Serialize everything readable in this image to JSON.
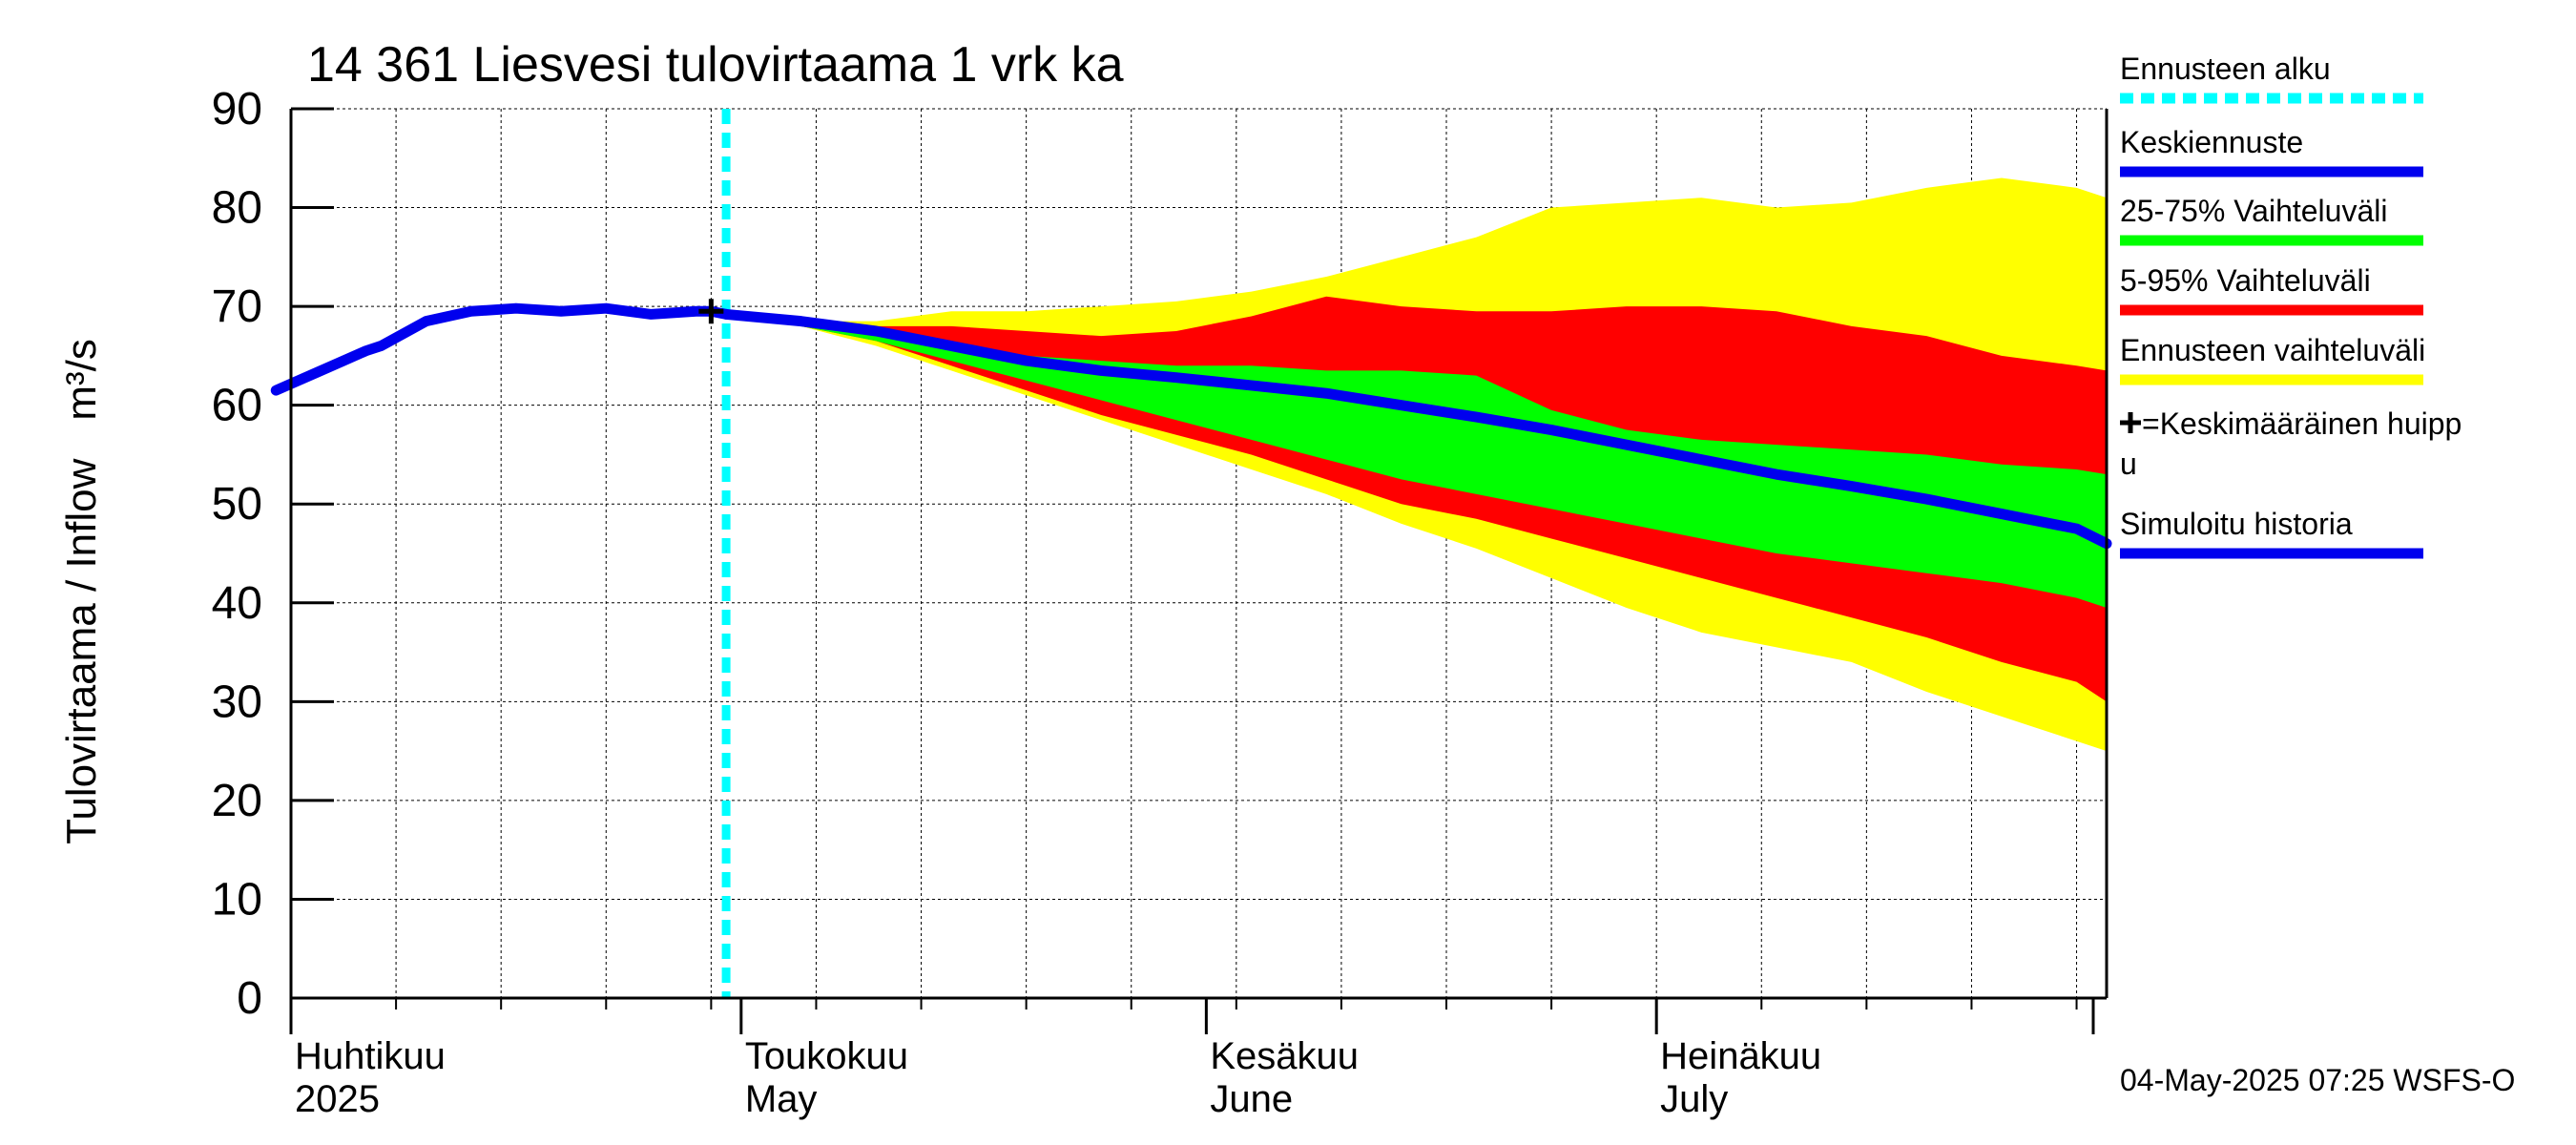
{
  "chart_data": {
    "type": "area",
    "title": "14 361 Liesvesi tulovirtaama 1 vrk ka",
    "ylabel": "Tulovirtaama / Inflow",
    "yunit": "m³/s",
    "ylim": [
      0,
      90
    ],
    "yticks": [
      0,
      10,
      20,
      30,
      40,
      50,
      60,
      70,
      80,
      90
    ],
    "xlim": [
      "2025-04-01",
      "2025-07-31"
    ],
    "grid": true,
    "month_labels": [
      {
        "date": "2025-04-01",
        "line1": "Huhtikuu",
        "line2": "2025"
      },
      {
        "date": "2025-05-01",
        "line1": "Toukokuu",
        "line2": "May"
      },
      {
        "date": "2025-06-01",
        "line1": "Kesäkuu",
        "line2": "June"
      },
      {
        "date": "2025-07-01",
        "line1": "Heinäkuu",
        "line2": "July"
      }
    ],
    "forecast_start": "2025-04-30",
    "mean_peak": {
      "date": "2025-04-29",
      "value": 69.5
    },
    "history": {
      "dates": [
        "2025-03-31",
        "2025-04-03",
        "2025-04-06",
        "2025-04-07",
        "2025-04-10",
        "2025-04-13",
        "2025-04-16",
        "2025-04-19",
        "2025-04-22",
        "2025-04-25",
        "2025-04-28",
        "2025-04-29",
        "2025-04-30"
      ],
      "values": [
        61.5,
        63.5,
        65.5,
        66.0,
        68.5,
        69.5,
        69.8,
        69.5,
        69.8,
        69.2,
        69.5,
        69.5,
        69.2
      ]
    },
    "forecast_dates": [
      "2025-04-30",
      "2025-05-05",
      "2025-05-10",
      "2025-05-15",
      "2025-05-20",
      "2025-05-25",
      "2025-05-30",
      "2025-06-04",
      "2025-06-09",
      "2025-06-14",
      "2025-06-19",
      "2025-06-24",
      "2025-06-29",
      "2025-07-04",
      "2025-07-09",
      "2025-07-14",
      "2025-07-19",
      "2025-07-24",
      "2025-07-29",
      "2025-07-31"
    ],
    "series": [
      {
        "name": "Ennusteen vaihteluväli",
        "role": "band",
        "color": "#ffff00",
        "upper": [
          69.2,
          68.5,
          68.5,
          69.5,
          69.5,
          70.0,
          70.5,
          71.5,
          73.0,
          75.0,
          77.0,
          80.0,
          80.5,
          81.0,
          80.0,
          80.5,
          82.0,
          83.0,
          82.0,
          81.0
        ],
        "lower": [
          69.2,
          68.0,
          66.0,
          63.5,
          61.0,
          58.5,
          56.0,
          53.5,
          51.0,
          48.0,
          45.5,
          42.5,
          39.5,
          37.0,
          35.5,
          34.0,
          31.0,
          28.5,
          26.0,
          25.0
        ]
      },
      {
        "name": "5-95% Vaihteluväli",
        "role": "band",
        "color": "#ff0000",
        "upper": [
          69.2,
          68.3,
          68.0,
          68.0,
          67.5,
          67.0,
          67.5,
          69.0,
          71.0,
          70.0,
          69.5,
          69.5,
          70.0,
          70.0,
          69.5,
          68.0,
          67.0,
          65.0,
          64.0,
          63.5
        ],
        "lower": [
          69.2,
          68.0,
          66.5,
          64.0,
          61.5,
          59.0,
          57.0,
          55.0,
          52.5,
          50.0,
          48.5,
          46.5,
          44.5,
          42.5,
          40.5,
          38.5,
          36.5,
          34.0,
          32.0,
          30.0
        ]
      },
      {
        "name": "25-75% Vaihteluväli",
        "role": "band",
        "color": "#00ff00",
        "upper": [
          69.2,
          68.2,
          67.0,
          65.5,
          65.0,
          64.5,
          64.0,
          64.0,
          63.5,
          63.5,
          63.0,
          59.5,
          57.5,
          56.5,
          56.0,
          55.5,
          55.0,
          54.0,
          53.5,
          53.0
        ],
        "lower": [
          69.2,
          68.0,
          66.5,
          64.5,
          62.5,
          60.5,
          58.5,
          56.5,
          54.5,
          52.5,
          51.0,
          49.5,
          48.0,
          46.5,
          45.0,
          44.0,
          43.0,
          42.0,
          40.5,
          39.5
        ]
      },
      {
        "name": "Keskiennuste",
        "role": "line",
        "color": "#0000ee",
        "values": [
          69.2,
          68.5,
          67.5,
          66.0,
          64.5,
          63.5,
          62.8,
          62.0,
          61.2,
          60.0,
          58.8,
          57.5,
          56.0,
          54.5,
          53.0,
          51.8,
          50.5,
          49.0,
          47.5,
          46.0
        ]
      }
    ],
    "legend": {
      "placement": "right",
      "items": [
        {
          "label": "Ennusteen alku",
          "color": "#00ffff",
          "style": "dashed"
        },
        {
          "label": "Keskiennuste",
          "color": "#0000ee",
          "style": "solid"
        },
        {
          "label": "25-75% Vaihteluväli",
          "color": "#00ff00",
          "style": "solid"
        },
        {
          "label": "5-95% Vaihteluväli",
          "color": "#ff0000",
          "style": "solid"
        },
        {
          "label": "Ennusteen vaihteluväli",
          "color": "#ffff00",
          "style": "solid"
        },
        {
          "label": "=Keskimääräinen huipp",
          "label2": "u",
          "color": "#000000",
          "style": "cross"
        },
        {
          "label": "Simuloitu historia",
          "color": "#0000ee",
          "style": "solid"
        }
      ]
    },
    "footer": "04-May-2025 07:25 WSFS-O"
  }
}
